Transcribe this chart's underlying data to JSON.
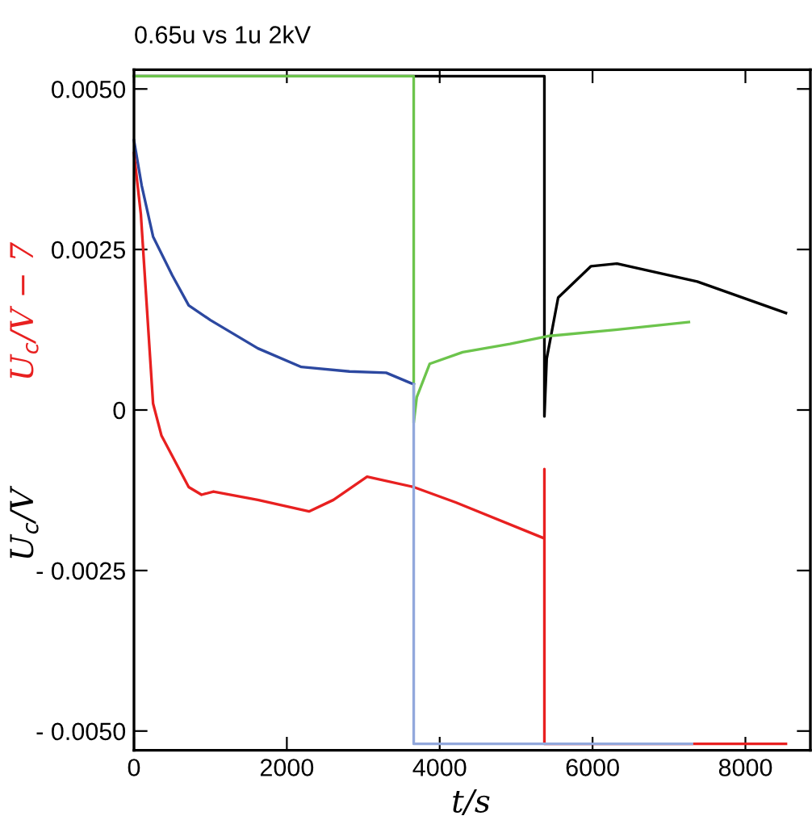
{
  "chart_data": {
    "type": "line",
    "title": "0.65u vs 1u 2kV",
    "xlabel": "t/s",
    "ylabel": "U$_{c}$/V",
    "annotations": [
      "U$_{c}$/V − 7"
    ],
    "xlim": [
      0,
      8850
    ],
    "ylim": [
      -0.0053,
      0.0053
    ],
    "xticks": [
      0,
      2000,
      4000,
      6000,
      8000
    ],
    "yticks": [
      {
        "value": 0.005,
        "label": "0.0050"
      },
      {
        "value": 0.0025,
        "label": "0.0025"
      },
      {
        "value": 0,
        "label": "0"
      },
      {
        "value": -0.0025,
        "label": "- 0.0025"
      },
      {
        "value": -0.005,
        "label": "- 0.0050"
      }
    ],
    "grid": false,
    "legend": false,
    "marker": "none",
    "line_style": "solid",
    "series": [
      {
        "color": "#000000",
        "x": [
          0,
          5370,
          5370,
          5400,
          5550,
          5980,
          6320,
          7370,
          8530
        ],
        "values": [
          0.0052,
          0.0052,
          -0.0001,
          0.0008,
          0.00175,
          0.00224,
          0.00228,
          0.002,
          0.00151
        ]
      },
      {
        "color": "#6cc44c",
        "x": [
          0,
          3660,
          3660,
          3700,
          3870,
          4300,
          4920,
          5410,
          6300,
          7260
        ],
        "values": [
          0.0052,
          0.0052,
          -0.0002,
          0.0002,
          0.00072,
          0.0009,
          0.00103,
          0.00115,
          0.00125,
          0.00137
        ]
      },
      {
        "color": "#2c48a0",
        "x": [
          0,
          100,
          250,
          500,
          716,
          1000,
          1621,
          2190,
          2820,
          3300,
          3660
        ],
        "values": [
          0.0042,
          0.0035,
          0.0027,
          0.0021,
          0.00163,
          0.0014,
          0.00096,
          0.00067,
          0.0006,
          0.00058,
          0.0004
        ]
      },
      {
        "color": "#e82020",
        "x": [
          0,
          90,
          250,
          360,
          716,
          884,
          1040,
          1620,
          2290,
          2610,
          3050,
          3660,
          4210,
          5370,
          5370,
          5370,
          8530
        ],
        "values": [
          0.004,
          0.00305,
          0.0001,
          -0.0004,
          -0.0012,
          -0.00132,
          -0.00127,
          -0.0014,
          -0.00158,
          -0.0014,
          -0.00104,
          -0.0012,
          -0.00144,
          -0.002,
          -0.00092,
          -0.0052,
          -0.0052
        ]
      },
      {
        "color": "#92a8dc",
        "x": [
          3660,
          3660,
          7300
        ],
        "values": [
          0.0004,
          -0.0052,
          -0.0052
        ]
      }
    ]
  }
}
